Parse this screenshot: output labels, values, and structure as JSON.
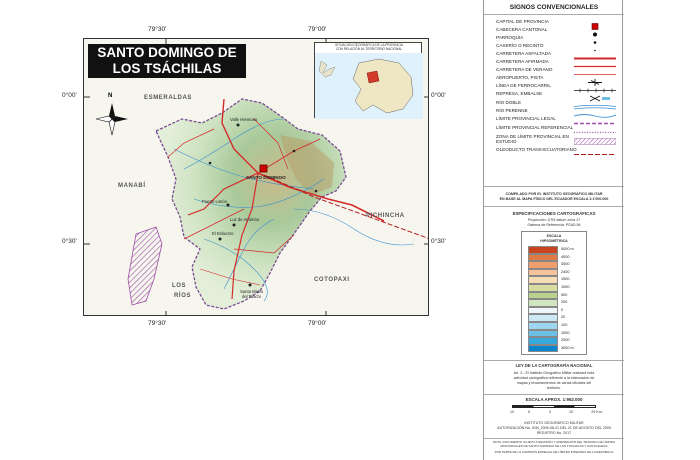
{
  "map": {
    "title_line1": "SANTO DOMINGO DE",
    "title_line2": "LOS TSÁCHILAS",
    "longitudes": [
      "79°30'",
      "79°00'"
    ],
    "latitudes": [
      "0°00'",
      "0°30'"
    ],
    "north_label": "N",
    "regions": {
      "esmeraldas": "ESMERALDAS",
      "manabi": "MANABÍ",
      "pichincha": "PICHINCHA",
      "cotopaxi": "COTOPAXI",
      "los_rios_1": "LOS",
      "los_rios_2": "RÍOS"
    },
    "places": {
      "capital": "SANTO DOMINGO",
      "valle": "Valle Hermoso",
      "puerto_limon": "Puerto Limón",
      "luz_america": "Luz de América",
      "el_esfuerzo": "El Esfuerzo",
      "santa_maria_1": "Santa María",
      "santa_maria_2": "del Toachi"
    },
    "inset": {
      "caption_line1": "SITUACIÓN GEOGRÁFICA DE LA PROVINCIA",
      "caption_line2": "CON RELACIÓN AL TERRITORIO NACIONAL"
    }
  },
  "legend": {
    "title": "SIGNOS CONVENCIONALES",
    "items": [
      {
        "label": "CAPITAL DE PROVINCIA",
        "symbol": "square-red"
      },
      {
        "label": "CABECERA CANTONAL",
        "symbol": "circle-black"
      },
      {
        "label": "PARROQUIA",
        "symbol": "dot-small"
      },
      {
        "label": "CASERÍO O RECINTO",
        "symbol": "dot-tiny"
      },
      {
        "label": "CARRETERA ASFALTADA",
        "symbol": "line-red-thick"
      },
      {
        "label": "CARRETERA AFIRMADA",
        "symbol": "line-red"
      },
      {
        "label": "CARRETERA DE VERANO",
        "symbol": "line-red-thin"
      },
      {
        "label": "AEROPUERTO, PISTA",
        "symbol": "plane-icon"
      },
      {
        "label": "LÍNEA DE FERROCARRIL",
        "symbol": "rail-line"
      },
      {
        "label": "REPRESA, EMBALSE",
        "symbol": "dam-icon"
      },
      {
        "label": "RÍO DOBLE",
        "symbol": "river-double"
      },
      {
        "label": "RÍO PERENNE",
        "symbol": "river-line"
      },
      {
        "label": "LÍMITE PROVINCIAL LEGAL",
        "symbol": "dash-purple"
      },
      {
        "label": "LÍMITE PROVINCIAL REFERENCIAL",
        "symbol": "dot-purple"
      },
      {
        "label": "ZONA DE LÍMITE PROVINCIAL EN ESTUDIO",
        "symbol": "hatch-purple"
      },
      {
        "label": "OLEODUCTO TRANS-ECUATORIANO",
        "symbol": "pipeline-red"
      }
    ],
    "compiled_1": "COMPILADO POR EL INSTITUTO GEOGRÁFICO MILITAR",
    "compiled_2": "EN BASE AL MAPA FÍSICO DEL ECUADOR ESCALA 1:1'000.000",
    "specs_title": "ESPECIFICACIONES CARTOGRÁFICAS",
    "specs_1": "Proyección: UTM datum zona 17",
    "specs_2": "Sistema de Referencia: PSAD 56",
    "hyp_title_1": "ESCALA",
    "hyp_title_2": "HIPSOMÉTRICA",
    "hyp_values": [
      "5000 m",
      "4000",
      "3000",
      "2400",
      "1500",
      "1000",
      "500",
      "200",
      "0",
      "20",
      "100",
      "1000",
      "2000",
      "3000 m"
    ],
    "hyp_colors": [
      "#c8441e",
      "#e07a45",
      "#ee9f6c",
      "#f4c39b",
      "#f6dcb5",
      "#d9dca0",
      "#b9d38f",
      "#cfe6c0",
      "#eef6f9",
      "#cde9f5",
      "#9fd6ef",
      "#6cc0e6",
      "#37a8dc",
      "#0b86cc"
    ],
    "law_title": "LEY DE LA CARTOGRAFÍA NACIONAL",
    "law_1": "Art. 2.- El Instituto Geográfico Militar realizará toda",
    "law_2": "actividad cartográfica referente a la elaboración de",
    "law_3": "mapas y levantamientos de cartas oficiales del",
    "law_4": "territorio.",
    "scale_title": "ESCALA APROX. 1:962.000",
    "scale_ticks": [
      "10",
      "5",
      "0",
      "10",
      "20 Km."
    ],
    "footer_1": "INSTITUTO GEOGRÁFICO MILITAR",
    "footer_2": "AUTORIZACIÓN No. IGM_2009-08-21 DEL 21 DE AGOSTO DEL 2009",
    "footer_3": "REGISTRO No. 2017",
    "note_1": "NOTA: DOCUMENTO SUJETO A REVISIÓN Y APROBACIÓN DEL TRAZADO DE LÍMITES PROVINCIALES DE SANTO DOMINGO DE LOS TSÁCHILAS Y SANTA ELENA",
    "note_2": "POR PARTE DE LA COMISIÓN ESPECIAL DE LÍMITES INTERNOS DE LA REPÚBLICA"
  }
}
